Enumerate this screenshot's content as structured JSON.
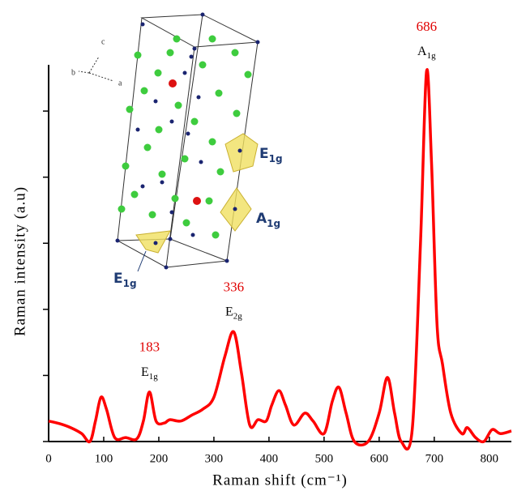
{
  "chart_data": {
    "type": "line",
    "x_label": "Raman shift (cm⁻¹)",
    "y_label": "Raman intensity (a.u)",
    "xlim": [
      0,
      840
    ],
    "xticks": [
      0,
      100,
      200,
      300,
      400,
      500,
      600,
      700,
      800
    ],
    "ylim": [
      0,
      5.7
    ],
    "yticks": [
      0,
      1,
      2,
      3,
      4,
      5
    ],
    "series": [
      {
        "color": "#ff0000",
        "x": [
          0,
          20,
          40,
          60,
          75,
          85,
          95,
          105,
          120,
          140,
          160,
          172,
          183,
          195,
          210,
          220,
          240,
          260,
          280,
          300,
          320,
          336,
          350,
          365,
          380,
          395,
          405,
          418,
          430,
          445,
          465,
          480,
          500,
          515,
          527,
          540,
          555,
          580,
          600,
          615,
          628,
          640,
          660,
          675,
          686,
          695,
          705,
          715,
          730,
          750,
          760,
          775,
          790,
          805,
          820,
          840
        ],
        "values": [
          0.31,
          0.27,
          0.21,
          0.12,
          0,
          0.31,
          0.67,
          0.49,
          0.06,
          0.06,
          0.04,
          0.31,
          0.75,
          0.31,
          0.28,
          0.33,
          0.31,
          0.4,
          0.49,
          0.67,
          1.29,
          1.66,
          1.04,
          0.25,
          0.33,
          0.31,
          0.55,
          0.77,
          0.55,
          0.25,
          0.43,
          0.31,
          0.12,
          0.61,
          0.82,
          0.43,
          0,
          0,
          0.43,
          0.97,
          0.43,
          0,
          0.18,
          3.0,
          5.6,
          4.23,
          1.78,
          1.17,
          0.43,
          0.12,
          0.21,
          0.06,
          0,
          0.18,
          0.12,
          0.16
        ]
      }
    ],
    "annotations": [
      {
        "x": 183,
        "mode": "E",
        "mode_sub": "1g"
      },
      {
        "x": 336,
        "mode": "E",
        "mode_sub": "2g"
      },
      {
        "x": 686,
        "mode": "A",
        "mode_sub": "1g"
      }
    ]
  },
  "inset": {
    "axes": [
      "c",
      "b",
      "a"
    ],
    "labels": [
      {
        "text": "E",
        "sub": "1g"
      },
      {
        "text": "A",
        "sub": "1g"
      },
      {
        "text": "E",
        "sub": "1g"
      }
    ]
  }
}
